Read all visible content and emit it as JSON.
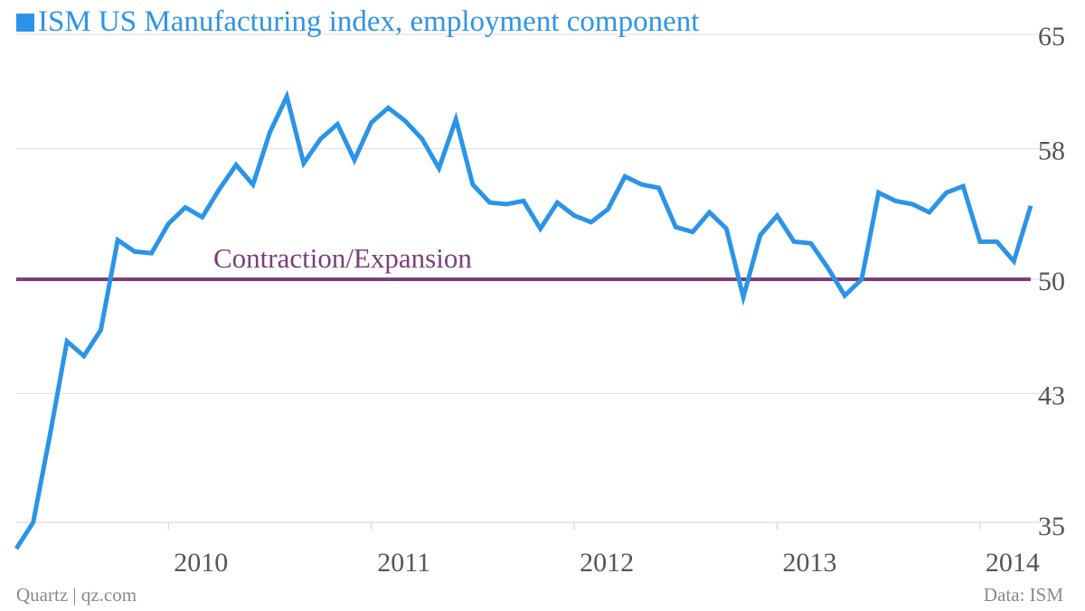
{
  "title": "ISM US Manufacturing index, employment component",
  "footer": {
    "source_left": "Quartz | qz.com",
    "source_right": "Data: ISM"
  },
  "colors": {
    "series": "#2b94e8",
    "reference": "#7a3f7a",
    "grid": "#dddddd",
    "text": "#555555"
  },
  "chart_data": {
    "type": "line",
    "title": "ISM US Manufacturing index, employment component",
    "xlabel": "",
    "ylabel": "",
    "x_range": [
      "2009-04",
      "2014-04"
    ],
    "ylim": [
      33,
      66
    ],
    "y_ticks": [
      65,
      58,
      50,
      43,
      35
    ],
    "y_axis_side": "right",
    "x_ticks": [
      {
        "label": "2010",
        "date": "2010-01"
      },
      {
        "label": "2011",
        "date": "2011-01"
      },
      {
        "label": "2012",
        "date": "2012-01"
      },
      {
        "label": "2013",
        "date": "2013-01"
      },
      {
        "label": "2014",
        "date": "2014-01"
      }
    ],
    "grid": "horizontal",
    "legend": "top-left",
    "reference_line": {
      "value": 50,
      "label": "Contraction/Expansion"
    },
    "series": [
      {
        "name": "ISM US Manufacturing index, employment component",
        "x": [
          "2009-04",
          "2009-05",
          "2009-06",
          "2009-07",
          "2009-08",
          "2009-09",
          "2009-10",
          "2009-11",
          "2009-12",
          "2010-01",
          "2010-02",
          "2010-03",
          "2010-04",
          "2010-05",
          "2010-06",
          "2010-07",
          "2010-08",
          "2010-09",
          "2010-10",
          "2010-11",
          "2010-12",
          "2011-01",
          "2011-02",
          "2011-03",
          "2011-04",
          "2011-05",
          "2011-06",
          "2011-07",
          "2011-08",
          "2011-09",
          "2011-10",
          "2011-11",
          "2011-12",
          "2012-01",
          "2012-02",
          "2012-03",
          "2012-04",
          "2012-05",
          "2012-06",
          "2012-07",
          "2012-08",
          "2012-09",
          "2012-10",
          "2012-11",
          "2012-12",
          "2013-01",
          "2013-02",
          "2013-03",
          "2013-04",
          "2013-05",
          "2013-06",
          "2013-07",
          "2013-08",
          "2013-09",
          "2013-10",
          "2013-11",
          "2013-12",
          "2014-01",
          "2014-02",
          "2014-03",
          "2014-04"
        ],
        "values": [
          33.5,
          35.1,
          40.5,
          46.2,
          45.3,
          46.9,
          52.4,
          51.7,
          51.6,
          53.4,
          54.4,
          53.8,
          55.5,
          57.0,
          55.8,
          59.0,
          61.2,
          57.1,
          58.6,
          59.5,
          57.3,
          59.6,
          60.5,
          59.7,
          58.6,
          56.8,
          59.8,
          55.8,
          54.7,
          54.6,
          54.8,
          53.1,
          54.7,
          53.9,
          53.5,
          54.3,
          56.3,
          55.8,
          55.6,
          53.2,
          52.9,
          54.1,
          53.1,
          48.9,
          52.7,
          53.9,
          52.3,
          52.2,
          50.7,
          49.0,
          50.0,
          55.3,
          54.8,
          54.6,
          54.1,
          55.3,
          55.7,
          52.3,
          52.3,
          51.1,
          54.5
        ]
      }
    ]
  }
}
